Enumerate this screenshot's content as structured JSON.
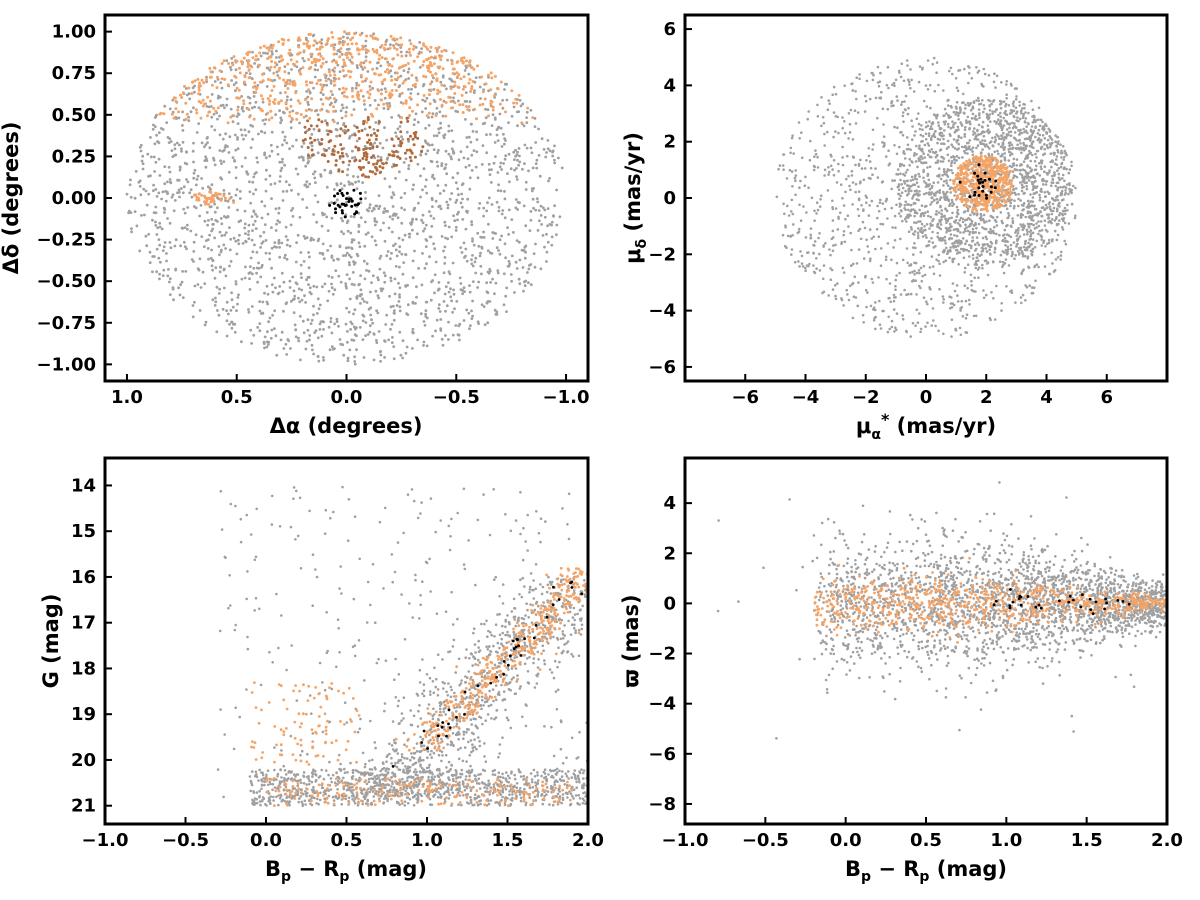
{
  "colors": {
    "field": "#a0a0a0",
    "members": "#f5a468",
    "core": "#000000",
    "arc": "#b06a3c",
    "frame": "#000000"
  },
  "chart_data": [
    {
      "type": "scatter",
      "panel": "top-left",
      "xlabel": "Δα (degrees)",
      "ylabel": "Δδ (degrees)",
      "xlim": [
        1.1,
        -1.1
      ],
      "ylim": [
        -1.1,
        1.1
      ],
      "xticks": [
        1.0,
        0.5,
        0.0,
        -0.5,
        -1.0
      ],
      "xtick_labels": [
        "1.0",
        "0.5",
        "0.0",
        "−0.5",
        "−1.0"
      ],
      "yticks": [
        1.0,
        0.75,
        0.5,
        0.25,
        0.0,
        -0.25,
        -0.5,
        -0.75,
        -1.0
      ],
      "ytick_labels": [
        "1.00",
        "0.75",
        "0.50",
        "0.25",
        "0.00",
        "−0.25",
        "−0.50",
        "−0.75",
        "−1.00"
      ],
      "series": [
        {
          "role": "field",
          "description": "uniform disk of radius 1 degree",
          "n": 2200
        },
        {
          "role": "members",
          "description": "dense band across top of field, δ ≳ 0.45",
          "n": 600
        },
        {
          "role": "arc",
          "description": "arc-shaped groups near center",
          "n": 160
        },
        {
          "role": "core",
          "description": "compact clump near origin",
          "n": 35
        }
      ]
    },
    {
      "type": "scatter",
      "panel": "top-right",
      "xlabel": "μα* (mas/yr)",
      "ylabel": "μδ (mas/yr)",
      "xlim": [
        -8,
        8
      ],
      "ylim": [
        -6.5,
        6.5
      ],
      "xticks": [
        -6,
        -4,
        -2,
        0,
        2,
        4,
        6
      ],
      "xtick_labels": [
        "−6",
        "−4",
        "−2",
        "0",
        "2",
        "4",
        "6"
      ],
      "yticks": [
        -6,
        -4,
        -2,
        0,
        2,
        4,
        6
      ],
      "ytick_labels": [
        "−6",
        "−4",
        "−2",
        "0",
        "2",
        "4",
        "6"
      ],
      "series": [
        {
          "role": "field",
          "description": "disk centered at (0,0) radius 5, densest near (2,0.5)",
          "n": 2600
        },
        {
          "role": "members",
          "description": "tight clump centered at (1.9, 0.5), radius ~1",
          "n": 450
        },
        {
          "role": "core",
          "description": "clump at (1.9, 0.5)",
          "n": 25
        }
      ]
    },
    {
      "type": "scatter",
      "panel": "bottom-left",
      "xlabel": "Bp − Rp (mag)",
      "ylabel": "G (mag)",
      "xlim": [
        -1.0,
        2.0
      ],
      "ylim": [
        21.4,
        13.4
      ],
      "xticks": [
        -1.0,
        -0.5,
        0.0,
        0.5,
        1.0,
        1.5,
        2.0
      ],
      "xtick_labels": [
        "−1.0",
        "−0.5",
        "0.0",
        "0.5",
        "1.0",
        "1.5",
        "2.0"
      ],
      "yticks": [
        14,
        15,
        16,
        17,
        18,
        19,
        20,
        21
      ],
      "ytick_labels": [
        "14",
        "15",
        "16",
        "17",
        "18",
        "19",
        "20",
        "21"
      ],
      "series": [
        {
          "role": "field",
          "description": "color-magnitude distribution, faint limit G≈21",
          "n": 2200
        },
        {
          "role": "members",
          "description": "red giant branch sequence from (1.0,19.5) to (2.0,15.8)",
          "n": 700
        },
        {
          "role": "core",
          "description": "points along branch",
          "n": 40
        }
      ]
    },
    {
      "type": "scatter",
      "panel": "bottom-right",
      "xlabel": "Bp − Rp (mag)",
      "ylabel": "ϖ (mas)",
      "xlim": [
        -1.0,
        2.0
      ],
      "ylim": [
        -8.8,
        5.8
      ],
      "xticks": [
        -1.0,
        -0.5,
        0.0,
        0.5,
        1.0,
        1.5,
        2.0
      ],
      "xtick_labels": [
        "−1.0",
        "−0.5",
        "0.0",
        "0.5",
        "1.0",
        "1.5",
        "2.0"
      ],
      "yticks": [
        -8,
        -6,
        -4,
        -2,
        0,
        2,
        4
      ],
      "ytick_labels": [
        "−8",
        "−6",
        "−4",
        "−2",
        "0",
        "2",
        "4"
      ],
      "series": [
        {
          "role": "field",
          "description": "parallax spread around 0, wider at blue colors",
          "n": 2400
        },
        {
          "role": "members",
          "description": "narrow band near ϖ≈0",
          "n": 700
        },
        {
          "role": "core",
          "description": "points near ϖ≈0, color 0.9–1.8",
          "n": 30
        }
      ]
    }
  ]
}
